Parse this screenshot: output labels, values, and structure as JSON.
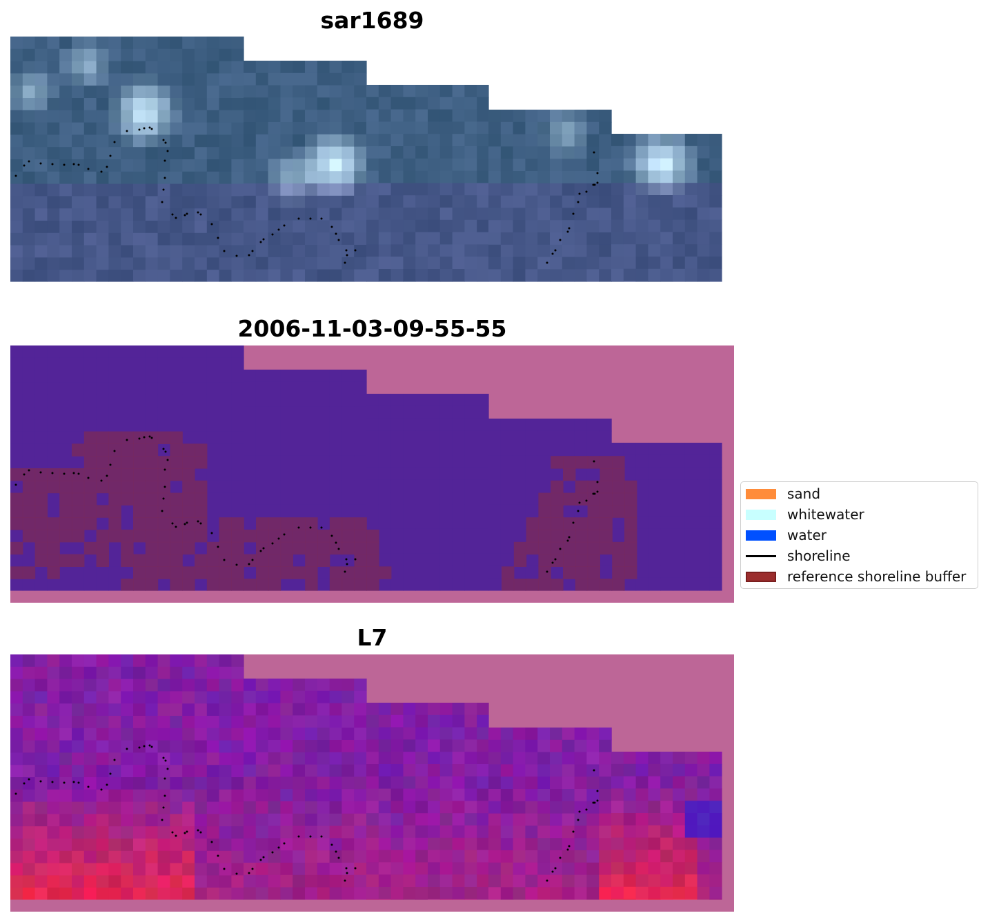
{
  "titles": {
    "panel1": "sar1689",
    "panel2": "2006-11-03-09-55-55",
    "panel3": "L7"
  },
  "legend": {
    "items": [
      {
        "label": "sand",
        "color": "#ff8c3a",
        "kind": "patch"
      },
      {
        "label": "whitewater",
        "color": "#c8ffff",
        "kind": "patch"
      },
      {
        "label": "water",
        "color": "#0050ff",
        "kind": "patch"
      },
      {
        "label": "shoreline",
        "color": "#000000",
        "kind": "line"
      },
      {
        "label": "reference shoreline buffer",
        "color": "#9b2d2d",
        "kind": "patch",
        "edge": "#7a1e1e"
      }
    ]
  },
  "colors": {
    "nodata": "#bd6697",
    "water_class": "#532498",
    "buffer_overlay": "#77295f",
    "shoreline_points": "#000000"
  }
}
